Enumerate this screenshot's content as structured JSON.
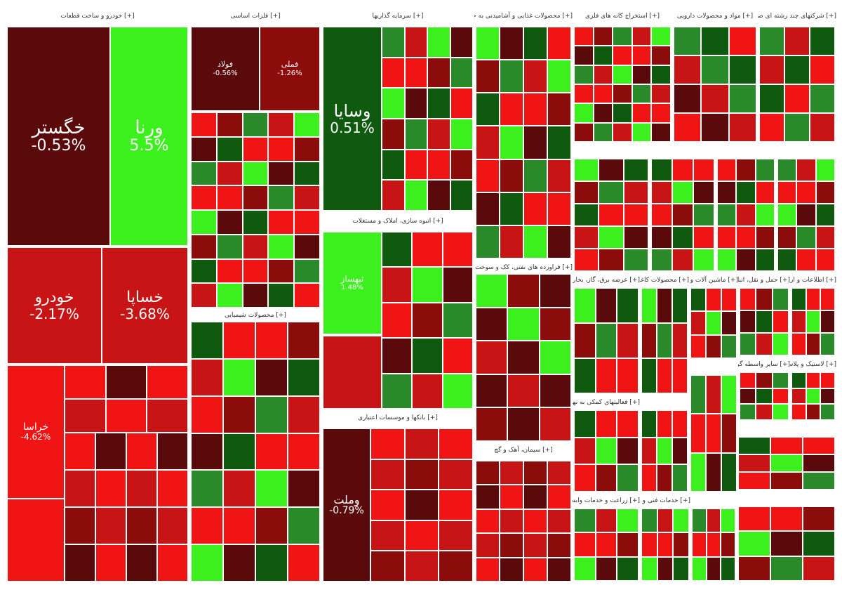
{
  "colors": {
    "dark_red": "#5a0a0a",
    "red": "#f01414",
    "mid_red": "#c81414",
    "deep_red": "#8c0c0c",
    "bright_green": "#3cf01e",
    "green": "#2a8a2a",
    "dark_green": "#0f5a0f"
  },
  "chart_data": {
    "type": "treemap",
    "sectors": [
      {
        "header": "[+] خودرو و ساخت قطعات",
        "stocks": [
          {
            "symbol": "خگستر",
            "change": "-0.53%",
            "color": "dark_red"
          },
          {
            "symbol": "ورنا",
            "change": "5.5%",
            "color": "bright_green"
          },
          {
            "symbol": "خودرو",
            "change": "-2.17%",
            "color": "mid_red"
          },
          {
            "symbol": "خساپا",
            "change": "-3.68%",
            "color": "mid_red"
          },
          {
            "symbol": "خراسا",
            "change": "-4.62%",
            "color": "red"
          }
        ]
      },
      {
        "header": "[+] فلزات اساسی",
        "stocks": [
          {
            "symbol": "فولاد",
            "change": "-0.56%",
            "color": "dark_red"
          },
          {
            "symbol": "فملی",
            "change": "-1.26%",
            "color": "deep_red"
          }
        ]
      },
      {
        "header": "[+] محصولات شیمیایی",
        "stocks": []
      },
      {
        "header": "[+] سرمایه گذاریها",
        "stocks": [
          {
            "symbol": "وسایا",
            "change": "0.51%",
            "color": "dark_green"
          }
        ]
      },
      {
        "header": "[+] انبوه سازی، املاک و مستغلات",
        "stocks": [
          {
            "symbol": "ثبهساز",
            "change": "1.48%",
            "color": "bright_green"
          }
        ]
      },
      {
        "header": "[+] بانکها و موسسات اعتباری",
        "stocks": [
          {
            "symbol": "وملت",
            "change": "-0.79%",
            "color": "dark_red"
          }
        ]
      },
      {
        "header": "[+] محصولات غذایی و آشامیدنی به جز قند و شکر",
        "stocks": []
      },
      {
        "header": "[+] استخراج کانه های فلزی",
        "stocks": []
      },
      {
        "header": "[+] سیمان، آهک و گچ",
        "stocks": []
      },
      {
        "header": "[+] مواد و محصولات دارویی",
        "stocks": []
      },
      {
        "header": "[+] فراورده های نفتی، کک و سوخت هسته ای",
        "stocks": []
      },
      {
        "header": "[+] شرکتهای چند رشته ای صنعتی",
        "stocks": []
      },
      {
        "header": "[+] عرضه برق، گاز، بخار و آب گرم",
        "stocks": []
      },
      {
        "header": "[+] محصولات کاغذی",
        "stocks": []
      },
      {
        "header": "[+] ماشین آلات و تجهیزات",
        "stocks": []
      },
      {
        "header": "[+] اطلاعات و ارتباطات",
        "stocks": []
      },
      {
        "header": "[+] سایر واسطه گریهای مالی",
        "stocks": []
      },
      {
        "header": "[+] لاستیک و پلاستیک",
        "stocks": []
      },
      {
        "header": "[+] زراعت و خدمات وابسته",
        "stocks": []
      },
      {
        "header": "[+] فعالیتهای کمکی به نهادهای مالی واسط",
        "stocks": []
      },
      {
        "header": "[+] حمل و نقل، انبارداری و ارتباطات",
        "stocks": []
      },
      {
        "header": "[+] خدمات فنی و مهندسی",
        "stocks": []
      }
    ]
  }
}
